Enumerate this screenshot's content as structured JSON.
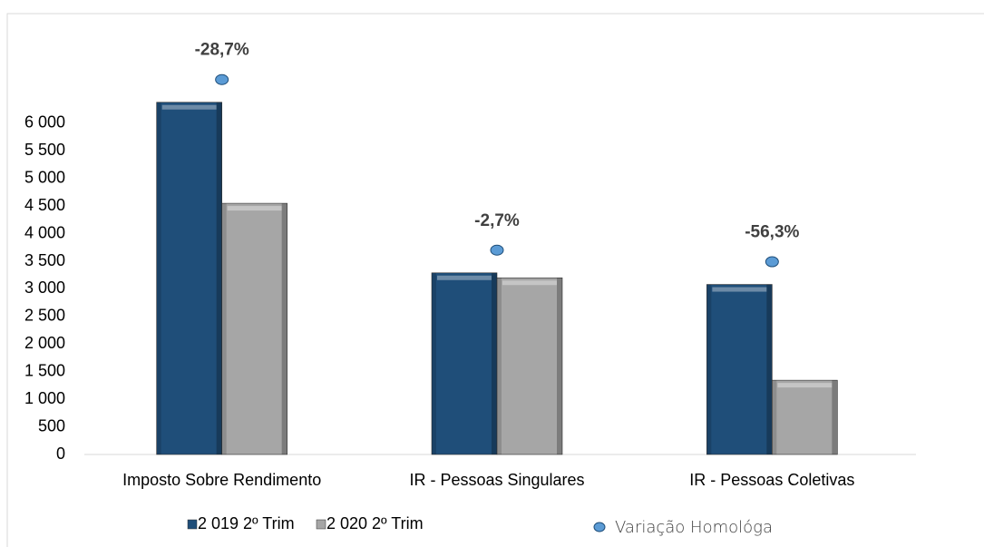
{
  "chart_data": {
    "type": "bar",
    "categories": [
      "Imposto Sobre Rendimento",
      "IR - Pessoas Singulares",
      "IR - Pessoas Coletivas"
    ],
    "series": [
      {
        "name": "2 019 2º Trim",
        "color": "#1f4e79",
        "values": [
          6380,
          3290,
          3080
        ]
      },
      {
        "name": "2 020 2º Trim",
        "color": "#a6a6a6",
        "values": [
          4550,
          3200,
          1345
        ]
      },
      {
        "name": "Variação Homológa",
        "type": "scatter",
        "color": "#5b9bd5",
        "values": [
          -28.7,
          -2.7,
          -56.3
        ],
        "value_labels": [
          "-28,7%",
          "-2,7%",
          "-56,3%"
        ]
      }
    ],
    "ylim": [
      0,
      7000
    ],
    "yticks": [
      0,
      500,
      {
        "value": 1000,
        "label": "1 000"
      },
      {
        "value": 1500,
        "label": "1 500"
      },
      {
        "value": 2000,
        "label": "2 000"
      },
      {
        "value": 2500,
        "label": "2 500"
      },
      {
        "value": 3000,
        "label": "3 000"
      },
      {
        "value": 3500,
        "label": "3 500"
      },
      {
        "value": 4000,
        "label": "4 000"
      },
      {
        "value": 4500,
        "label": "4 500"
      },
      {
        "value": 5000,
        "label": "5 000"
      },
      {
        "value": 5500,
        "label": "5 500"
      },
      {
        "value": 6000,
        "label": "6 000"
      }
    ],
    "grid": false
  }
}
